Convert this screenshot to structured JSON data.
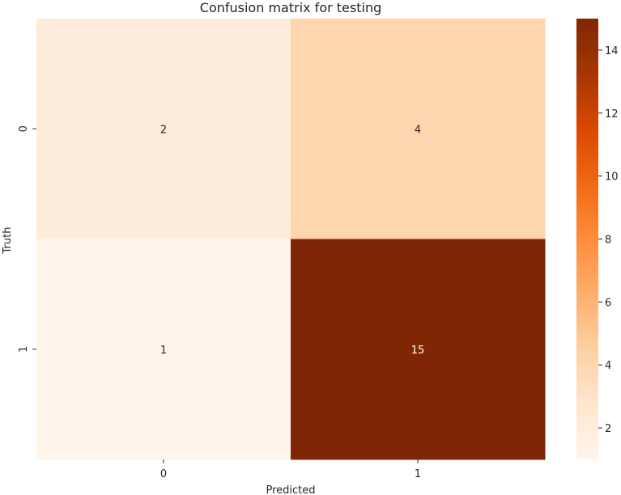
{
  "chart_data": {
    "type": "heatmap",
    "title": "Confusion matrix for testing",
    "xlabel": "Predicted",
    "ylabel": "Truth",
    "x_categories": [
      "0",
      "1"
    ],
    "y_categories": [
      "0",
      "1"
    ],
    "values": [
      [
        2,
        4
      ],
      [
        1,
        15
      ]
    ],
    "colormap": "Oranges",
    "colorbar": {
      "range": [
        1,
        15
      ],
      "ticks": [
        2,
        4,
        6,
        8,
        10,
        12,
        14
      ],
      "colors": [
        "#fff5eb",
        "#fee6ce",
        "#fdd0a2",
        "#fdae6b",
        "#fd8d3c",
        "#f16913",
        "#d94801",
        "#a63603",
        "#7f2704"
      ]
    },
    "grid": false,
    "legend": "colorbar-right"
  }
}
